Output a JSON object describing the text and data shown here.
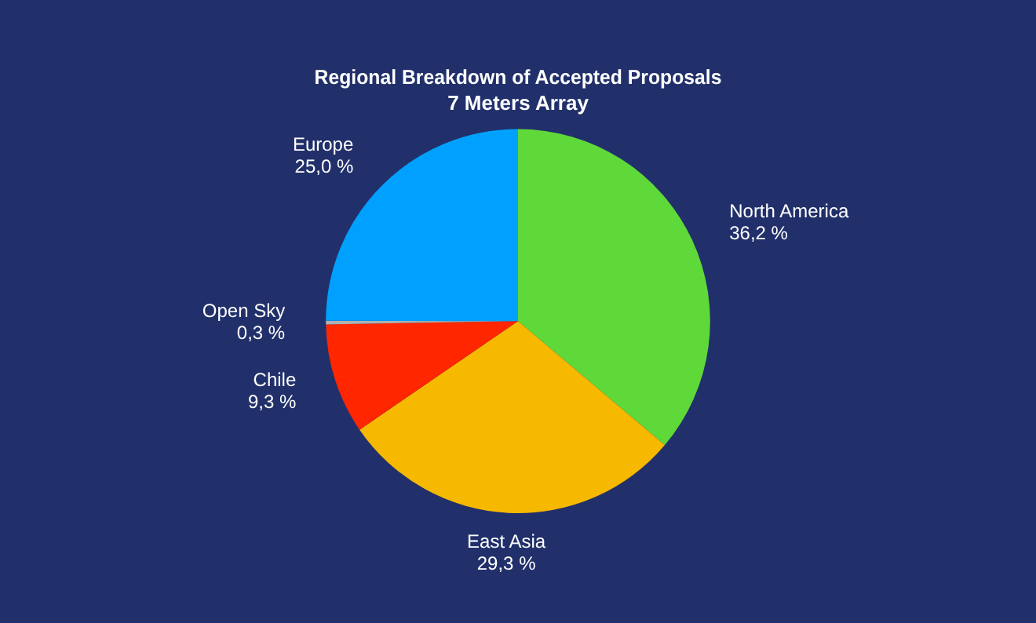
{
  "chart_data": {
    "type": "pie",
    "title": "Regional Breakdown of Accepted Proposals",
    "subtitle": "7 Meters Array",
    "categories": [
      "North America",
      "East Asia",
      "Chile",
      "Open Sky",
      "Europe"
    ],
    "values": [
      36.2,
      29.3,
      9.3,
      0.3,
      25.0
    ],
    "value_labels": [
      "36,2 %",
      "29,3 %",
      "9,3 %",
      "0,3 %",
      "25,0 %"
    ],
    "colors": [
      "#5fd93a",
      "#f7b800",
      "#ff2600",
      "#b0b0b0",
      "#00a0ff"
    ],
    "legend": false
  }
}
